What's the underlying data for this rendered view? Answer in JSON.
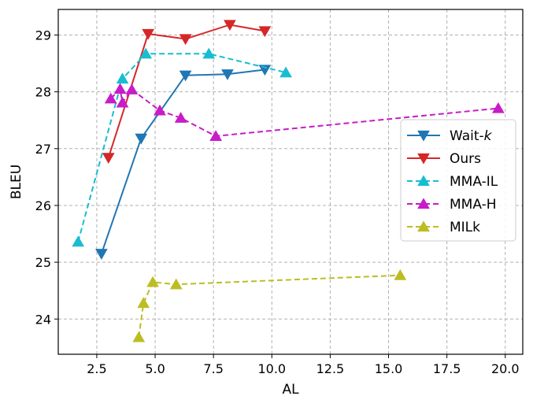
{
  "chart_data": {
    "type": "line",
    "title": "",
    "xlabel": "AL",
    "ylabel": "BLEU",
    "xlim": [
      0.85,
      20.75
    ],
    "ylim": [
      23.38,
      29.45
    ],
    "grid": true,
    "grid_style": "dashed",
    "x_ticks": [
      "2.5",
      "5.0",
      "7.5",
      "10.0",
      "12.5",
      "15.0",
      "17.5",
      "20.0"
    ],
    "x_tick_values": [
      2.5,
      5.0,
      7.5,
      10.0,
      12.5,
      15.0,
      17.5,
      20.0
    ],
    "y_ticks": [
      "24",
      "25",
      "26",
      "27",
      "28",
      "29"
    ],
    "y_tick_values": [
      24,
      25,
      26,
      27,
      28,
      29
    ],
    "legend_position": "center-right",
    "series": [
      {
        "name": "Wait-",
        "name_italic_suffix": "k",
        "color": "#1f77b4",
        "linestyle": "solid",
        "marker": "triangle-down",
        "points": [
          [
            2.7,
            25.15
          ],
          [
            4.4,
            27.18
          ],
          [
            6.3,
            28.29
          ],
          [
            8.1,
            28.31
          ],
          [
            9.7,
            28.39
          ]
        ]
      },
      {
        "name": "Ours",
        "name_italic_suffix": "",
        "color": "#d62728",
        "linestyle": "solid",
        "marker": "triangle-down",
        "points": [
          [
            3.0,
            26.84
          ],
          [
            4.7,
            29.02
          ],
          [
            6.3,
            28.93
          ],
          [
            8.2,
            29.18
          ],
          [
            9.7,
            29.07
          ]
        ]
      },
      {
        "name": "MMA-IL",
        "name_italic_suffix": "",
        "color": "#17becf",
        "linestyle": "dashed",
        "marker": "triangle-up",
        "points": [
          [
            1.7,
            25.36
          ],
          [
            3.6,
            28.23
          ],
          [
            4.6,
            28.67
          ],
          [
            7.3,
            28.67
          ],
          [
            10.6,
            28.34
          ]
        ]
      },
      {
        "name": "MMA-H",
        "name_italic_suffix": "",
        "color": "#c71cc7",
        "linestyle": "dashed",
        "marker": "triangle-up",
        "points": [
          [
            3.1,
            27.88
          ],
          [
            3.5,
            28.05
          ],
          [
            3.6,
            27.81
          ],
          [
            4.0,
            28.04
          ],
          [
            5.2,
            27.67
          ],
          [
            6.1,
            27.54
          ],
          [
            7.6,
            27.22
          ],
          [
            19.7,
            27.71
          ]
        ]
      },
      {
        "name": "MILk",
        "name_italic_suffix": "",
        "color": "#bcbd22",
        "linestyle": "dashed",
        "marker": "triangle-up",
        "points": [
          [
            4.3,
            23.68
          ],
          [
            4.5,
            24.28
          ],
          [
            4.9,
            24.65
          ],
          [
            5.9,
            24.61
          ],
          [
            15.5,
            24.77
          ]
        ]
      }
    ]
  }
}
